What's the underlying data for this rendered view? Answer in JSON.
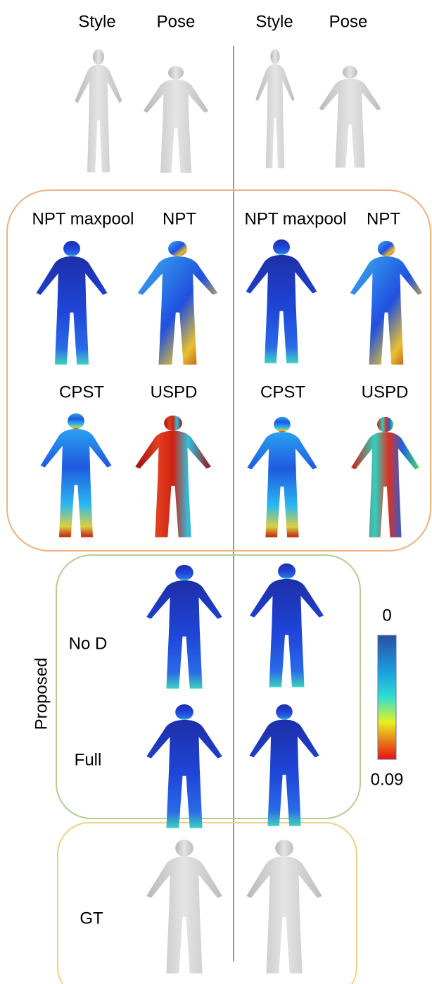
{
  "column_headers": [
    "Style",
    "Pose",
    "Style",
    "Pose"
  ],
  "methods": {
    "row1": [
      "NPT maxpool",
      "NPT",
      "NPT maxpool",
      "NPT"
    ],
    "row2": [
      "CPST",
      "USPD",
      "CPST",
      "USPD"
    ]
  },
  "proposed": {
    "title": "Proposed",
    "rows": [
      "No D",
      "Full"
    ]
  },
  "ground_truth": "GT",
  "colorbar": {
    "min": "0",
    "max": "0.09"
  }
}
